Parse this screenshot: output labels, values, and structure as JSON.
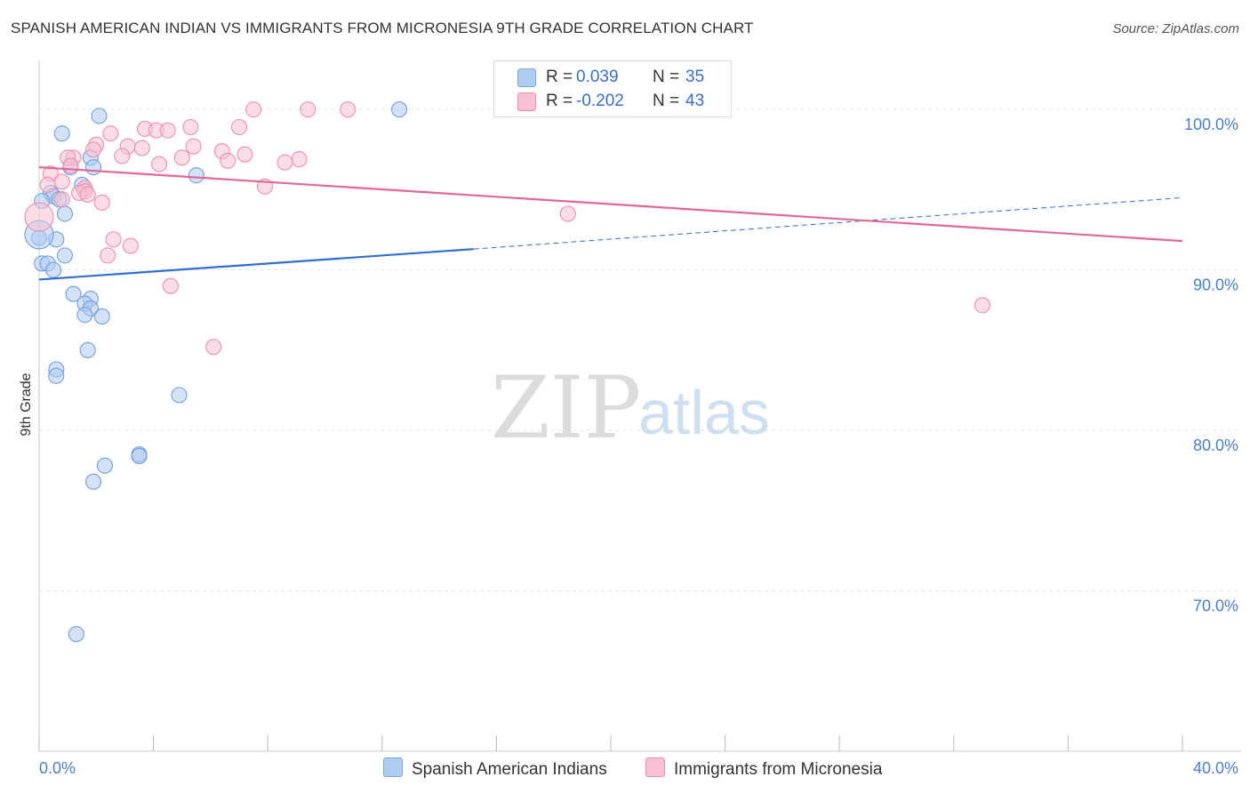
{
  "title": "SPANISH AMERICAN INDIAN VS IMMIGRANTS FROM MICRONESIA 9TH GRADE CORRELATION CHART",
  "source": "Source: ZipAtlas.com",
  "watermark": {
    "zip": "ZIP",
    "atlas": "atlas"
  },
  "legend": {
    "rows": [
      {
        "r_label": "R =",
        "r_value": "0.039",
        "n_label": "N =",
        "n_value": "35",
        "color": "#aecbf0",
        "border": "#7aa6e0"
      },
      {
        "r_label": "R =",
        "r_value": "-0.202",
        "n_label": "N =",
        "n_value": "43",
        "color": "#f7c1d2",
        "border": "#ec8fad"
      }
    ]
  },
  "bottom_legend": [
    {
      "label": "Spanish American Indians",
      "color": "#aecbf0",
      "border": "#7aa6e0"
    },
    {
      "label": "Immigrants from Micronesia",
      "color": "#f7c1d2",
      "border": "#ec8fad"
    }
  ],
  "chart_data": {
    "type": "scatter",
    "xlabel": "",
    "ylabel": "9th Grade",
    "xlim": [
      0,
      40
    ],
    "ylim": [
      60,
      103.5
    ],
    "x_tick_labels": [
      "0.0%",
      "40.0%"
    ],
    "y_ticks": [
      70,
      80,
      90,
      100
    ],
    "y_tick_labels": [
      "70.0%",
      "80.0%",
      "90.0%",
      "100.0%"
    ],
    "grid": true,
    "series": [
      {
        "name": "Spanish American Indians",
        "color": "#6f9fe0",
        "fill": "#aecbf0",
        "line_color": "#2f6fd0",
        "trend": {
          "x0": 0,
          "y0": 89.4,
          "x1": 15.2,
          "y1": 91.3,
          "x_dash_end": 40,
          "y_dash_end": 94.5
        },
        "points": [
          [
            2.1,
            99.6
          ],
          [
            12.6,
            100.0
          ],
          [
            0.8,
            98.5
          ],
          [
            1.8,
            97.0
          ],
          [
            1.1,
            96.4
          ],
          [
            1.9,
            96.4
          ],
          [
            5.5,
            95.9
          ],
          [
            1.5,
            95.3
          ],
          [
            0.4,
            94.8
          ],
          [
            0.5,
            94.6
          ],
          [
            0.7,
            94.4
          ],
          [
            0.1,
            94.3
          ],
          [
            0.9,
            93.5
          ],
          [
            0.0,
            92.0
          ],
          [
            0.6,
            91.9
          ],
          [
            0.9,
            90.9
          ],
          [
            0.1,
            90.4
          ],
          [
            0.3,
            90.4
          ],
          [
            0.5,
            90.0
          ],
          [
            1.2,
            88.5
          ],
          [
            1.8,
            88.2
          ],
          [
            1.6,
            87.9
          ],
          [
            1.8,
            87.6
          ],
          [
            1.6,
            87.2
          ],
          [
            2.2,
            87.1
          ],
          [
            1.7,
            85.0
          ],
          [
            0.6,
            83.8
          ],
          [
            0.6,
            83.4
          ],
          [
            4.9,
            82.2
          ],
          [
            3.5,
            78.5
          ],
          [
            3.5,
            78.4
          ],
          [
            2.3,
            77.8
          ],
          [
            1.9,
            76.8
          ],
          [
            1.3,
            67.3
          ],
          [
            0.0,
            92.2
          ]
        ]
      },
      {
        "name": "Immigrants from Micronesia",
        "color": "#ec8fad",
        "fill": "#f7c1d2",
        "line_color": "#e2689a",
        "trend": {
          "x0": 0,
          "y0": 96.4,
          "x1": 40,
          "y1": 91.8
        },
        "points": [
          [
            7.5,
            100.0
          ],
          [
            9.4,
            100.0
          ],
          [
            10.8,
            100.0
          ],
          [
            5.3,
            98.9
          ],
          [
            7.0,
            98.9
          ],
          [
            3.7,
            98.8
          ],
          [
            4.1,
            98.7
          ],
          [
            4.5,
            98.7
          ],
          [
            2.5,
            98.5
          ],
          [
            2.0,
            97.8
          ],
          [
            3.1,
            97.7
          ],
          [
            3.6,
            97.6
          ],
          [
            5.4,
            97.7
          ],
          [
            1.9,
            97.5
          ],
          [
            6.4,
            97.4
          ],
          [
            7.2,
            97.2
          ],
          [
            2.9,
            97.1
          ],
          [
            5.0,
            97.0
          ],
          [
            9.1,
            96.9
          ],
          [
            1.2,
            97.0
          ],
          [
            6.6,
            96.8
          ],
          [
            8.6,
            96.7
          ],
          [
            4.2,
            96.6
          ],
          [
            0.4,
            96.0
          ],
          [
            0.8,
            95.5
          ],
          [
            0.3,
            95.3
          ],
          [
            7.9,
            95.2
          ],
          [
            1.6,
            95.1
          ],
          [
            1.6,
            94.9
          ],
          [
            1.4,
            94.8
          ],
          [
            1.7,
            94.7
          ],
          [
            0.8,
            94.4
          ],
          [
            2.2,
            94.2
          ],
          [
            0.0,
            93.3
          ],
          [
            18.5,
            93.5
          ],
          [
            2.6,
            91.9
          ],
          [
            3.2,
            91.5
          ],
          [
            2.4,
            90.9
          ],
          [
            4.6,
            89.0
          ],
          [
            6.1,
            85.2
          ],
          [
            33.0,
            87.8
          ],
          [
            1.0,
            97.0
          ],
          [
            1.1,
            96.5
          ]
        ]
      }
    ]
  }
}
